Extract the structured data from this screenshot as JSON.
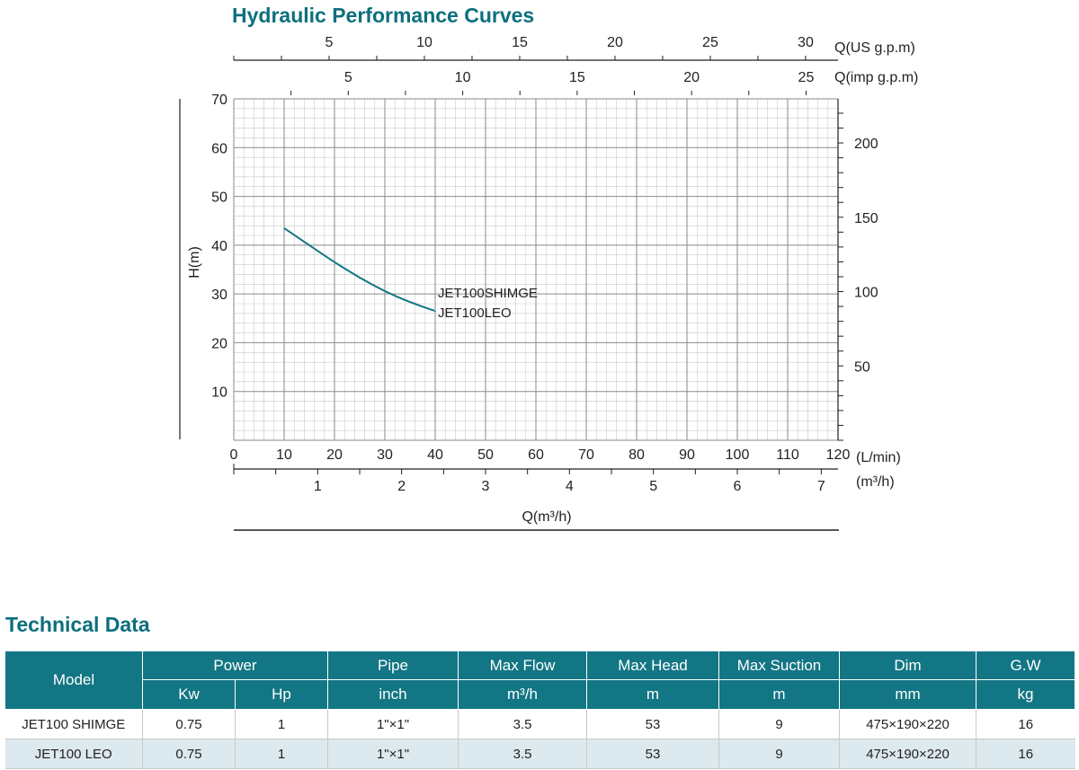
{
  "chart_title": "Hydraulic Performance Curves",
  "technical_title": "Technical Data",
  "chart_data": {
    "type": "line",
    "title": "Hydraulic Performance Curves",
    "x": {
      "label": "(L/min)",
      "range": [
        0,
        120
      ],
      "ticks": [
        "0",
        "10",
        "20",
        "30",
        "40",
        "50",
        "60",
        "70",
        "80",
        "90",
        "100",
        "110",
        "120"
      ]
    },
    "y": {
      "label": "H(m)",
      "range": [
        0,
        70
      ],
      "ticks": [
        "10",
        "20",
        "30",
        "40",
        "50",
        "60",
        "70"
      ]
    },
    "y2": {
      "label": "",
      "ticks": [
        "50",
        "100",
        "150",
        "200"
      ]
    },
    "x_top_us": {
      "label": "Q(US g.p.m)",
      "ticks": [
        "5",
        "10",
        "15",
        "20",
        "25",
        "30"
      ]
    },
    "x_top_imp": {
      "label": "Q(imp g.p.m)",
      "ticks": [
        "5",
        "10",
        "15",
        "20",
        "25"
      ]
    },
    "x_m3h": {
      "label": "(m³/h)",
      "ticks": [
        "1",
        "2",
        "3",
        "4",
        "5",
        "6",
        "7"
      ]
    },
    "x_bottom_label": "Q(m³/h)",
    "grid": true,
    "series": [
      {
        "labels": [
          "JET100SHIMGE",
          "JET100LEO"
        ],
        "color": "#137684",
        "x": [
          10,
          15,
          20,
          25,
          30,
          35,
          40
        ],
        "y": [
          43.5,
          40,
          36.5,
          33.3,
          30.5,
          28.3,
          26.5
        ]
      }
    ]
  },
  "table": {
    "header_top": {
      "model": "Model",
      "power": "Power",
      "pipe": "Pipe",
      "max_flow": "Max Flow",
      "max_head": "Max Head",
      "max_suction": "Max Suction",
      "dim": "Dim",
      "gw": "G.W"
    },
    "header_units": {
      "kw": "Kw",
      "hp": "Hp",
      "pipe": "inch",
      "max_flow": "m³/h",
      "max_head": "m",
      "max_suction": "m",
      "dim": "mm",
      "gw": "kg"
    },
    "rows": [
      [
        "JET100 SHIMGE",
        "0.75",
        "1",
        "1\"×1\"",
        "3.5",
        "53",
        "9",
        "475×190×220",
        "16"
      ],
      [
        "JET100 LEO",
        "0.75",
        "1",
        "1\"×1\"",
        "3.5",
        "53",
        "9",
        "475×190×220",
        "16"
      ]
    ]
  }
}
